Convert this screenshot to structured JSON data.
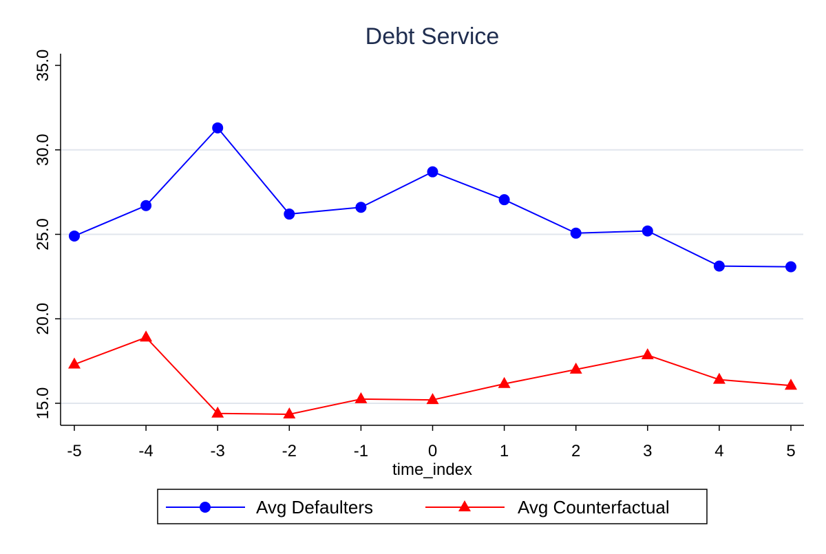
{
  "chart_data": {
    "type": "line",
    "title": "Debt Service",
    "xlabel": "time_index",
    "ylabel": "",
    "x": [
      -5,
      -4,
      -3,
      -2,
      -1,
      0,
      1,
      2,
      3,
      4,
      5
    ],
    "x_tick_labels": [
      "-5",
      "-4",
      "-3",
      "-2",
      "-1",
      "0",
      "1",
      "2",
      "3",
      "4",
      "5"
    ],
    "y_ticks": [
      15,
      20,
      25,
      30,
      35
    ],
    "y_tick_labels": [
      "15.0",
      "20.0",
      "25.0",
      "30.0",
      "35.0"
    ],
    "xlim": [
      -5,
      5
    ],
    "ylim": [
      15,
      35
    ],
    "grid": "horizontal",
    "legend_position": "bottom",
    "series": [
      {
        "name": "Avg Defaulters",
        "color": "#0000ff",
        "marker": "circle",
        "values": [
          24.9,
          26.7,
          31.3,
          26.2,
          26.6,
          28.7,
          27.05,
          25.07,
          25.2,
          23.12,
          23.08
        ]
      },
      {
        "name": "Avg Counterfactual",
        "color": "#ff0000",
        "marker": "triangle",
        "values": [
          17.3,
          18.9,
          14.4,
          14.35,
          15.25,
          15.2,
          16.15,
          17.0,
          17.85,
          16.4,
          16.05
        ]
      }
    ],
    "colors": {
      "title": "#1f2d4f",
      "gridline": "#e1e6ed",
      "axis": "#000000"
    }
  }
}
